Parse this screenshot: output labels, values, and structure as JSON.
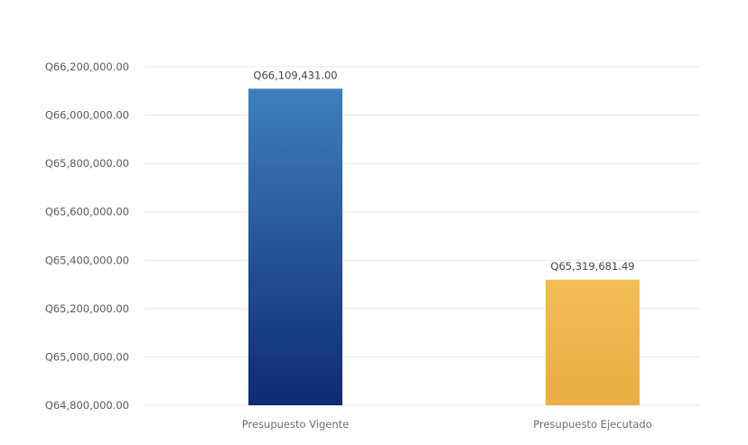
{
  "chart_data": {
    "type": "bar",
    "title": "",
    "xlabel": "",
    "ylabel": "",
    "categories": [
      "Presupuesto Vigente",
      "Presupuesto Ejecutado"
    ],
    "values": [
      66109431.0,
      65319681.49
    ],
    "value_labels": [
      "Q66,109,431.00",
      "Q65,319,681.49"
    ],
    "ylim": [
      64800000,
      66200000
    ],
    "yticks": [
      64800000,
      65000000,
      65200000,
      65400000,
      65600000,
      65800000,
      66000000,
      66200000
    ],
    "ytick_labels": [
      "Q64,800,000.00",
      "Q65,000,000.00",
      "Q65,200,000.00",
      "Q65,400,000.00",
      "Q65,600,000.00",
      "Q65,800,000.00",
      "Q66,000,000.00",
      "Q66,200,000.00"
    ],
    "grid": true,
    "legend": "none",
    "colors": {
      "bar_1_top": "#3f7fbf",
      "bar_1_bottom": "#0d2a74",
      "bar_2_top": "#f2bd57",
      "bar_2_bottom": "#ecad45",
      "grid": "#e6e8ec"
    }
  }
}
